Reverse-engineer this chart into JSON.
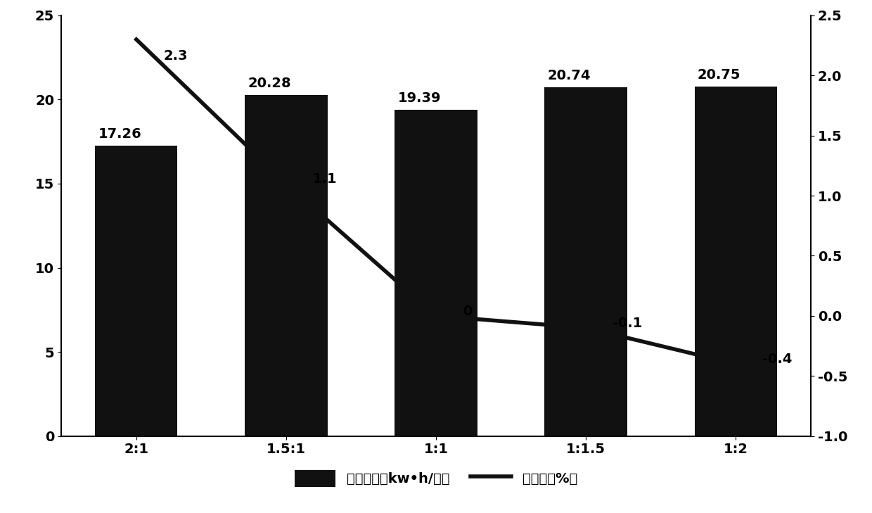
{
  "categories": [
    "2:1",
    "1.5:1",
    "1:1",
    "1:1.5",
    "1:2"
  ],
  "bar_values": [
    17.26,
    20.28,
    19.39,
    20.74,
    20.75
  ],
  "bar_labels": [
    "17.26",
    "20.28",
    "19.39",
    "20.74",
    "20.75"
  ],
  "line_values": [
    2.3,
    1.1,
    0,
    -0.1,
    -0.4
  ],
  "line_labels": [
    "2.3",
    "1.1",
    "0",
    "-0.1",
    "-0.4"
  ],
  "bar_color": "#111111",
  "line_color": "#111111",
  "left_ylim": [
    0,
    25
  ],
  "left_yticks": [
    0,
    5,
    10,
    15,
    20,
    25
  ],
  "right_ylim": [
    -1,
    2.5
  ],
  "right_yticks": [
    -1,
    -0.5,
    0,
    0.5,
    1,
    1.5,
    2,
    2.5
  ],
  "legend_bar_label": "制冷能耗（kw•h/㎡）",
  "legend_line_label": "节能率（%）",
  "background_color": "#ffffff",
  "bar_label_fontsize": 14,
  "tick_fontsize": 14,
  "legend_fontsize": 14,
  "line_width": 4.0,
  "bar_width": 0.55
}
